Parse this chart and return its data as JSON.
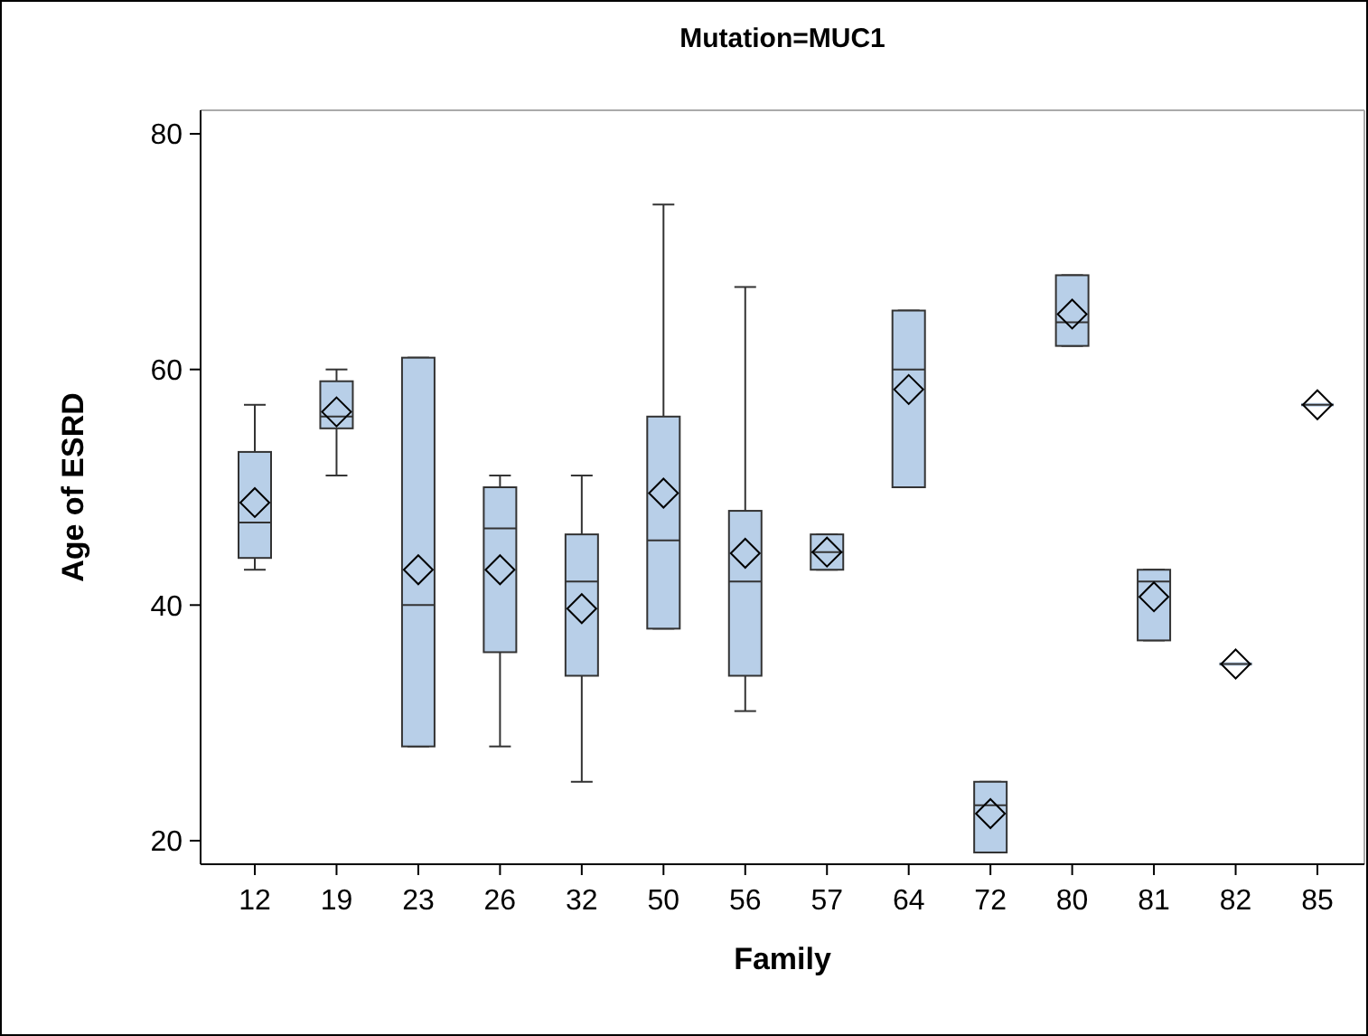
{
  "chart_data": {
    "type": "box",
    "title": "Mutation=MUC1",
    "xlabel": "Family",
    "ylabel": "Age of ESRD",
    "categories": [
      "12",
      "19",
      "23",
      "26",
      "32",
      "50",
      "56",
      "57",
      "64",
      "72",
      "80",
      "81",
      "82",
      "85"
    ],
    "color": "#b8cfe8",
    "boxes": [
      {
        "low": 43,
        "q1": 44,
        "median": 47,
        "q3": 53,
        "high": 57,
        "mean": 48.7
      },
      {
        "low": 51,
        "q1": 55,
        "median": 56,
        "q3": 59,
        "high": 60,
        "mean": 56.4
      },
      {
        "low": 28,
        "q1": 28,
        "median": 40,
        "q3": 61,
        "high": 61,
        "mean": 43
      },
      {
        "low": 28,
        "q1": 36,
        "median": 46.5,
        "q3": 50,
        "high": 51,
        "mean": 43
      },
      {
        "low": 25,
        "q1": 34,
        "median": 42,
        "q3": 46,
        "high": 51,
        "mean": 39.7
      },
      {
        "low": 38,
        "q1": 38,
        "median": 45.5,
        "q3": 56,
        "high": 74,
        "mean": 49.5
      },
      {
        "low": 31,
        "q1": 34,
        "median": 42,
        "q3": 48,
        "high": 67,
        "mean": 44.4
      },
      {
        "low": 43,
        "q1": 43,
        "median": 44.5,
        "q3": 46,
        "high": 46,
        "mean": 44.5
      },
      {
        "low": 50,
        "q1": 50,
        "median": 60,
        "q3": 65,
        "high": 65,
        "mean": 58.3
      },
      {
        "low": 19,
        "q1": 19,
        "median": 23,
        "q3": 25,
        "high": 25,
        "mean": 22.3
      },
      {
        "low": 62,
        "q1": 62,
        "median": 64,
        "q3": 68,
        "high": 68,
        "mean": 64.7
      },
      {
        "low": 37,
        "q1": 37,
        "median": 42,
        "q3": 43,
        "high": 43,
        "mean": 40.7
      },
      {
        "low": 35,
        "q1": 35,
        "median": 35,
        "q3": 35,
        "high": 35,
        "mean": 35
      },
      {
        "low": 57,
        "q1": 57,
        "median": 57,
        "q3": 57,
        "high": 57,
        "mean": 57
      }
    ],
    "ylim": [
      18,
      82
    ],
    "yticks": [
      20,
      40,
      60,
      80
    ],
    "grid": false
  }
}
